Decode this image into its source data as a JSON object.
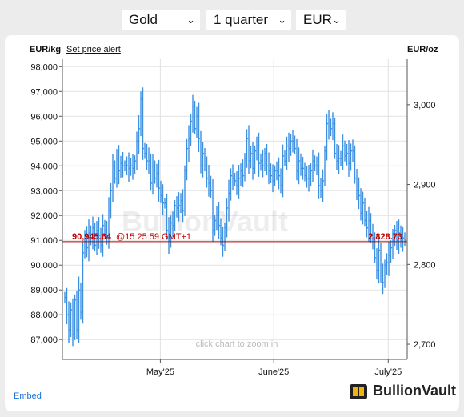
{
  "selectors": {
    "metal": "Gold",
    "period": "1 quarter",
    "currency": "EUR"
  },
  "chart_header": {
    "left_unit": "EUR/kg",
    "alert_link": "Set price alert",
    "right_unit": "EUR/oz"
  },
  "watermark": "BullionVault",
  "zoom_hint": "click chart to zoom in",
  "footer": {
    "embed_label": "Embed",
    "brand_name": "BullionVault"
  },
  "colors": {
    "series": "#3d8fe0",
    "price_line": "#b00000",
    "price_text": "#c00000",
    "grid": "#e2e2e2",
    "link": "#1a6fcf"
  },
  "chart_data": {
    "type": "line",
    "title": "",
    "xlabel": "",
    "ylabel": "EUR/kg",
    "ylabel_right": "EUR/oz",
    "ylim": [
      86200,
      98300
    ],
    "yticks": [
      "87,000",
      "88,000",
      "89,000",
      "90,000",
      "91,000",
      "92,000",
      "93,000",
      "94,000",
      "95,000",
      "96,000",
      "97,000",
      "98,000"
    ],
    "ytick_values": [
      87000,
      88000,
      89000,
      90000,
      91000,
      92000,
      93000,
      94000,
      95000,
      96000,
      97000,
      98000
    ],
    "ylim_right": [
      2681,
      3057
    ],
    "yticks_right": [
      "2,700",
      "2,800",
      "2,900",
      "3,000"
    ],
    "ytick_values_right": [
      2700,
      2800,
      2900,
      3000
    ],
    "xticks": [
      "May'25",
      "June'25",
      "July'25"
    ],
    "xtick_positions": [
      0.284,
      0.613,
      0.945
    ],
    "current_price": {
      "label_left": "90,945.64",
      "time": "@15:25:59 GMT+1",
      "label_right": "2,828.73",
      "value": 90945.64
    },
    "series": [
      {
        "values": [
          88700,
          88000,
          87400,
          88200,
          87200,
          88600,
          87400,
          89000,
          88100,
          90500,
          91200,
          90700,
          91300,
          91100,
          91500,
          90800,
          91400,
          91200,
          90800,
          91600,
          91400,
          91200,
          92200,
          93000,
          94000,
          93500,
          94300,
          93800,
          94100,
          94000,
          94000,
          94000,
          93900,
          94000,
          93900,
          94200,
          95000,
          95500,
          96700,
          94700,
          94500,
          94200,
          94200,
          93300,
          94000,
          93500,
          93700,
          93100,
          92800,
          92500,
          92500,
          91400,
          91000,
          91700,
          91600,
          92400,
          92300,
          92400,
          92600,
          92200,
          93800,
          94700,
          95100,
          95800,
          96400,
          95500,
          96000,
          95100,
          94000,
          94500,
          94000,
          93500,
          93300,
          93000,
          91400,
          91800,
          92000,
          91600,
          91100,
          90800,
          91500,
          92300,
          92900,
          93600,
          93500,
          93400,
          93200,
          93500,
          93800,
          93600,
          94300,
          95100,
          94200,
          94500,
          93900,
          94600,
          94800,
          94100,
          94200,
          94000,
          94500,
          94000,
          93800,
          93600,
          93400,
          93800,
          93800,
          93600,
          93200,
          94400,
          94200,
          94800,
          94700,
          95000,
          95000,
          94700,
          93800,
          94200,
          93900,
          93900,
          93600,
          93500,
          93500,
          93800,
          94200,
          94000,
          94000,
          93200,
          93000,
          93400,
          94600,
          95700,
          95600,
          95500,
          95700,
          94500,
          94200,
          94300,
          94300,
          94800,
          94400,
          94500,
          94100,
          94600,
          94600,
          93500,
          93000,
          92800,
          92100,
          92500,
          91800,
          91500,
          91800,
          91200,
          91100,
          90300,
          89800,
          90600,
          89600,
          89300,
          90000,
          90100,
          90400,
          90700,
          91000,
          91400,
          91000,
          91300,
          91000,
          91100,
          91000
        ]
      }
    ]
  }
}
